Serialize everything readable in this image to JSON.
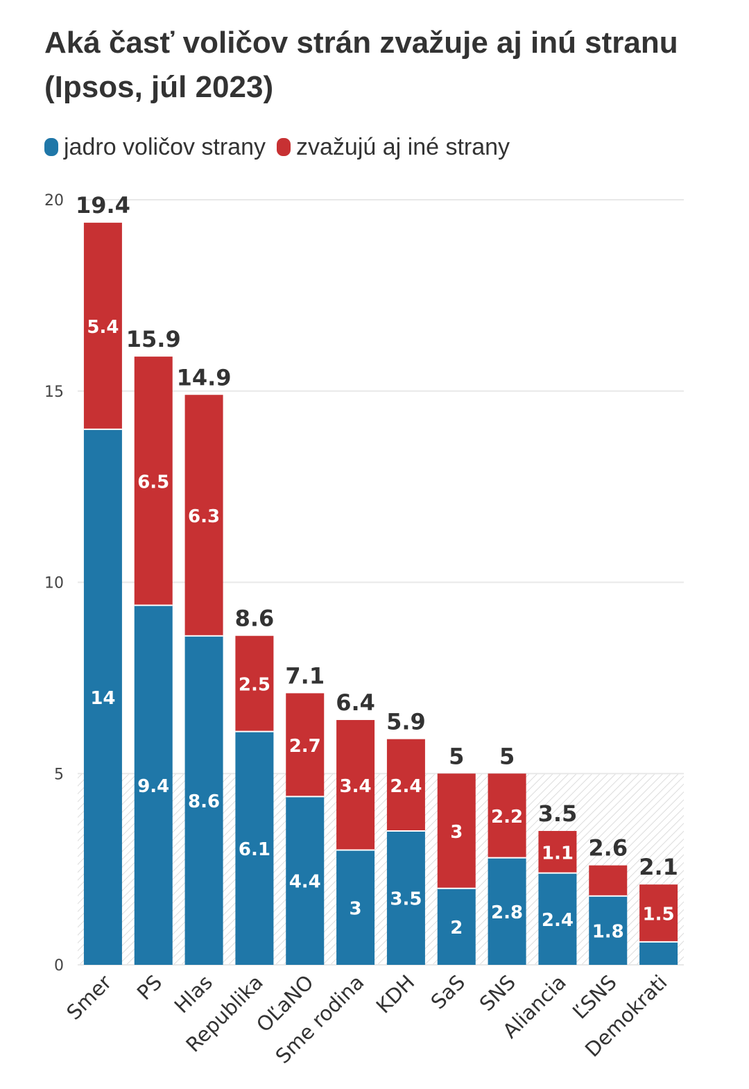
{
  "colors": {
    "core": "#1f77a8",
    "others": "#c73133",
    "grid": "#e8e8e8",
    "axis_text": "#444444",
    "total_text": "#333333",
    "title_text": "#333333"
  },
  "chart_data": {
    "type": "bar",
    "stacked": true,
    "title": "Aká časť voličov strán zvažuje aj inú stranu (Ipsos, júl 2023)",
    "xlabel": "",
    "ylabel": "",
    "ylim": [
      0,
      20
    ],
    "yticks": [
      0,
      5,
      10,
      15,
      20
    ],
    "grid": true,
    "legend_position": "top-left",
    "categories": [
      "Smer",
      "PS",
      "Hlas",
      "Republika",
      "OĽaNO",
      "Sme rodina",
      "KDH",
      "SaS",
      "SNS",
      "Aliancia",
      "ĽSNS",
      "Demokrati"
    ],
    "series": [
      {
        "name": "jadro voličov strany",
        "values": [
          14,
          9.4,
          8.6,
          6.1,
          4.4,
          3,
          3.5,
          2,
          2.8,
          2.4,
          1.8,
          0.6
        ]
      },
      {
        "name": "zvažujú aj iné strany",
        "values": [
          5.4,
          6.5,
          6.3,
          2.5,
          2.7,
          3.4,
          2.4,
          3,
          2.2,
          1.1,
          0.8,
          1.5
        ]
      }
    ],
    "segment_labels": {
      "jadro voličov strany": [
        "14",
        "9.4",
        "8.6",
        "6.1",
        "4.4",
        "3",
        "3.5",
        "2",
        "2.8",
        "2.4",
        "1.8",
        ""
      ],
      "zvažujú aj iné strany": [
        "5.4",
        "6.5",
        "6.3",
        "2.5",
        "2.7",
        "3.4",
        "2.4",
        "3",
        "2.2",
        "1.1",
        "",
        "1.5"
      ]
    },
    "totals": [
      "19.4",
      "15.9",
      "14.9",
      "8.6",
      "7.1",
      "6.4",
      "5.9",
      "5",
      "5",
      "3.5",
      "2.6",
      "2.1"
    ],
    "shaded_band": [
      0,
      5
    ]
  }
}
